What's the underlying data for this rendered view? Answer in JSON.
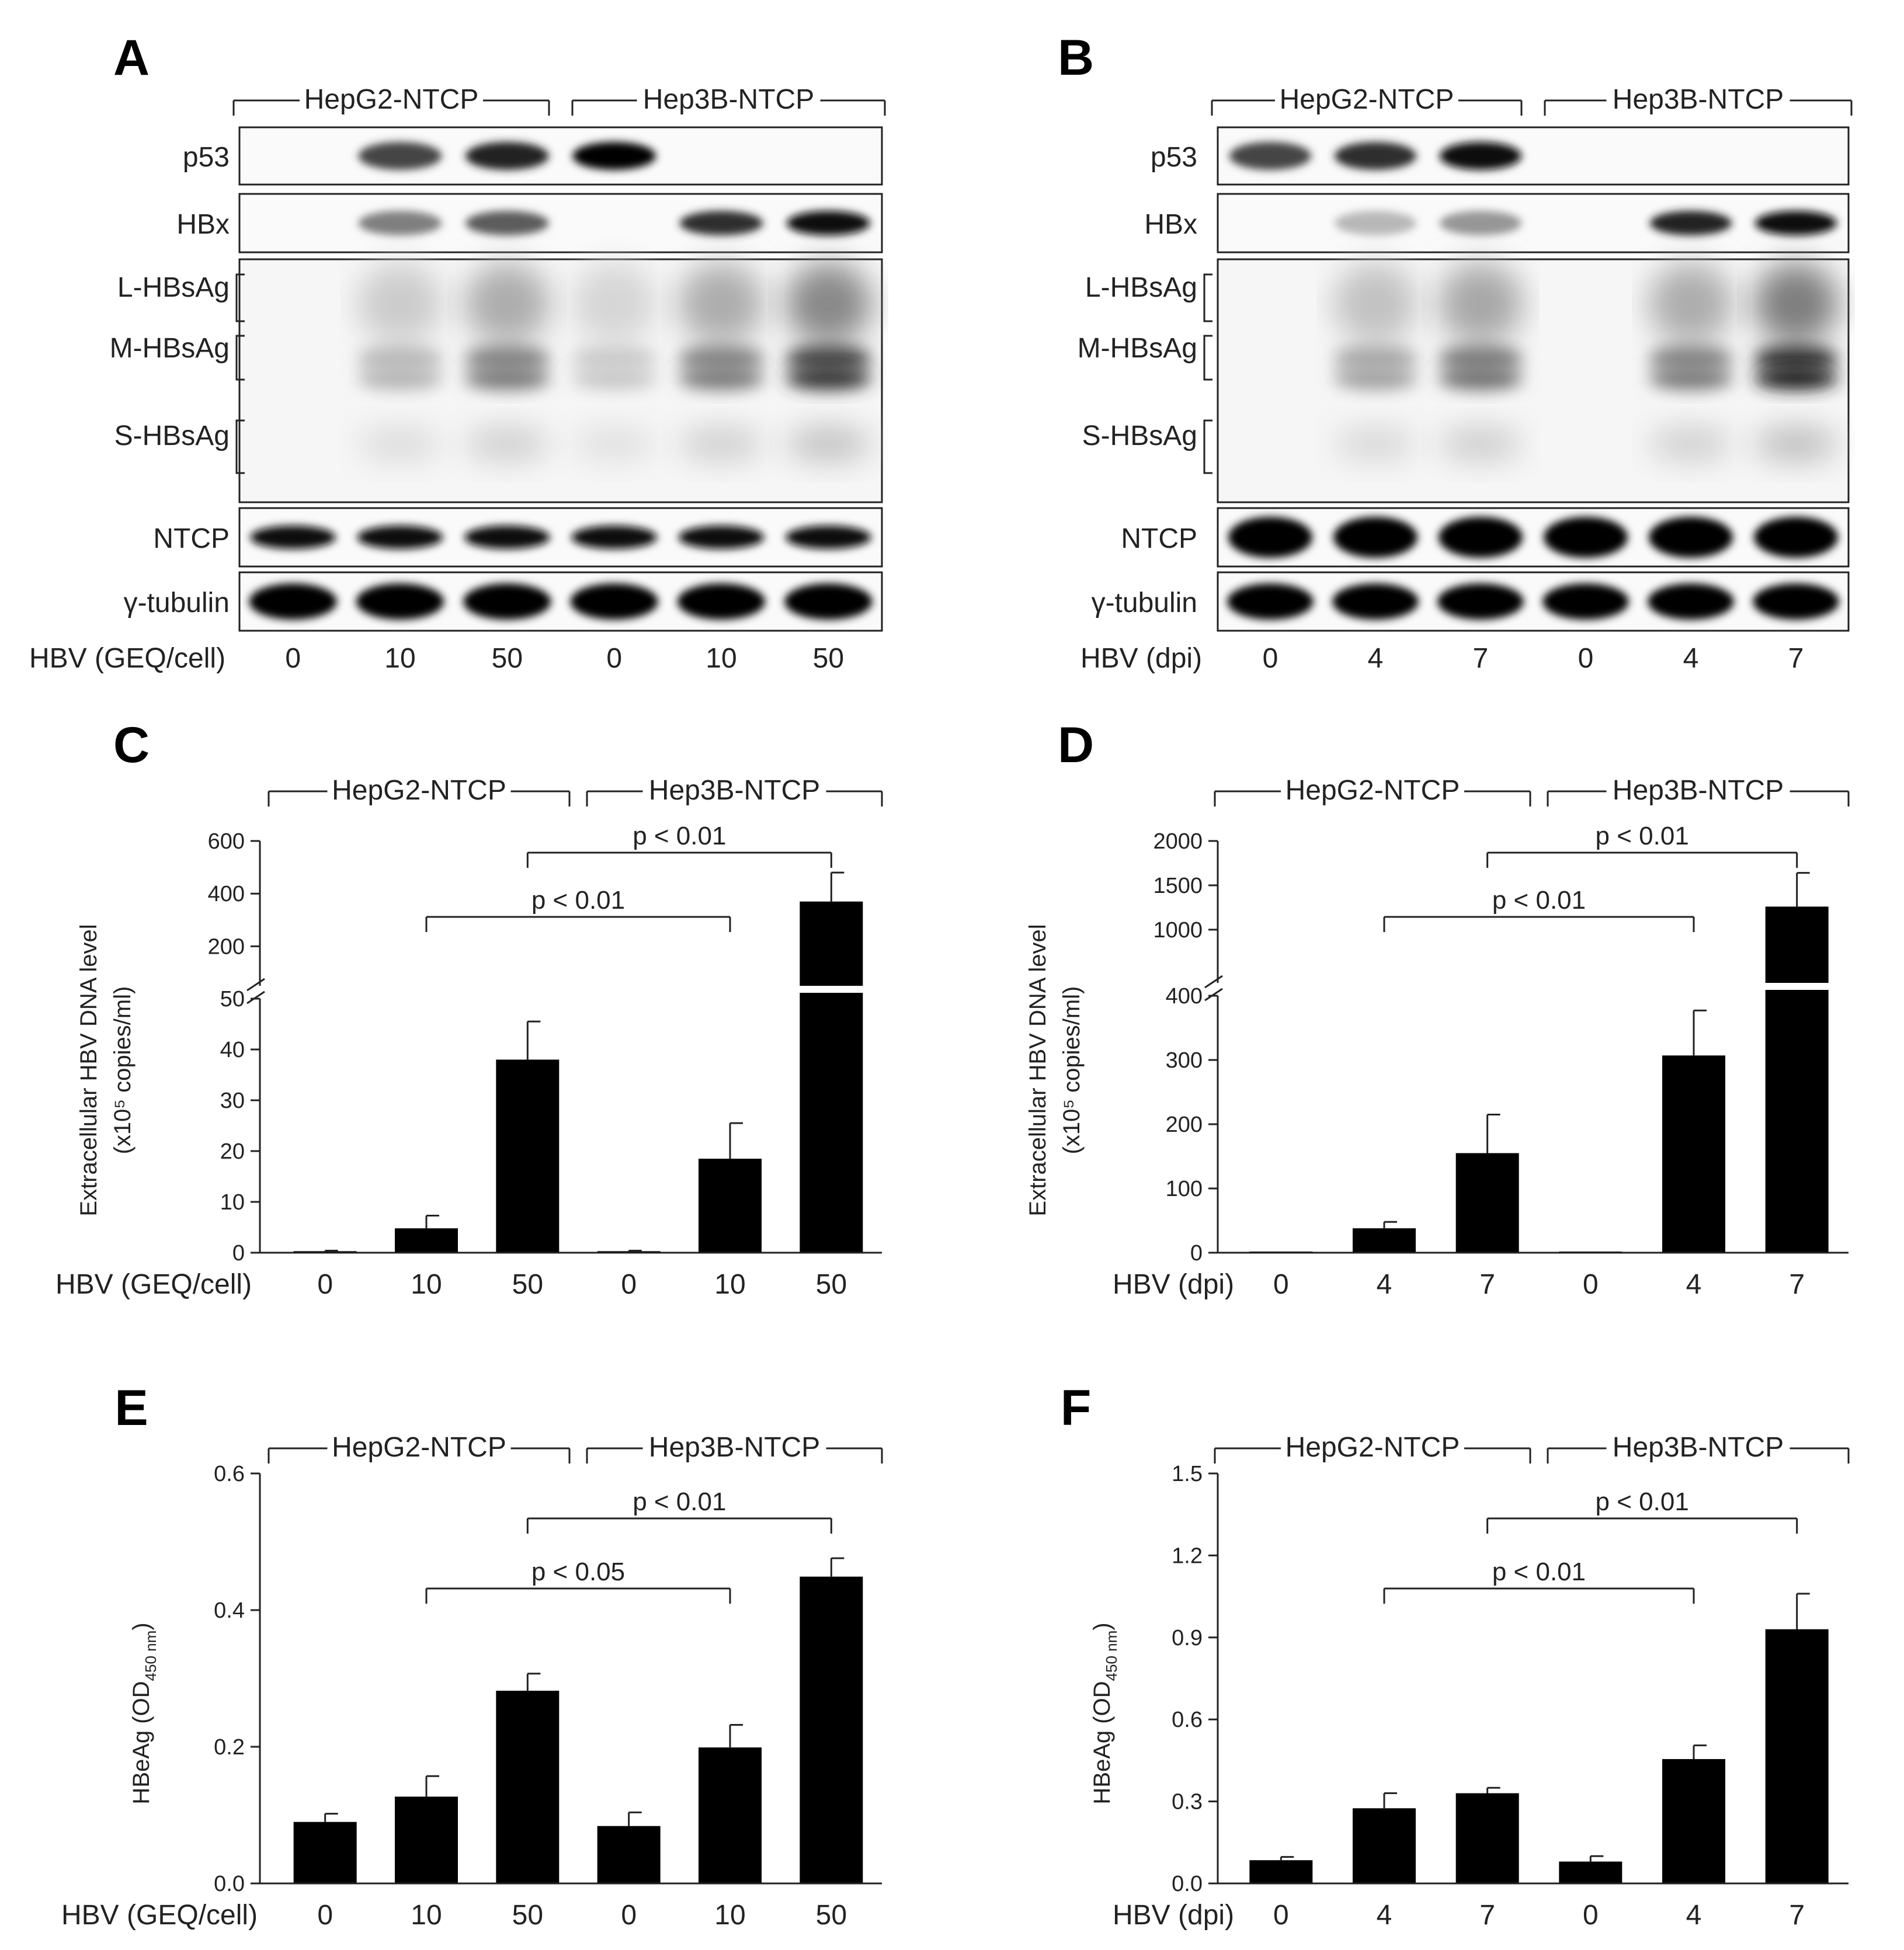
{
  "panel_letters": [
    "A",
    "B",
    "C",
    "D",
    "E",
    "F"
  ],
  "groups": [
    "HepG2-NTCP",
    "Hep3B-NTCP"
  ],
  "blots": [
    {
      "letter": "A",
      "rows": [
        "p53",
        "HBx",
        "L-HBsAg",
        "M-HBsAg",
        "S-HBsAg",
        "NTCP",
        "γ-tubulin"
      ],
      "condition_label": "HBV (GEQ/cell)",
      "lanes": [
        "0",
        "10",
        "50",
        "0",
        "10",
        "50"
      ]
    },
    {
      "letter": "B",
      "rows": [
        "p53",
        "HBx",
        "L-HBsAg",
        "M-HBsAg",
        "S-HBsAg",
        "NTCP",
        "γ-tubulin"
      ],
      "condition_label": "HBV (dpi)",
      "lanes": [
        "0",
        "4",
        "7",
        "0",
        "4",
        "7"
      ]
    }
  ],
  "chart_data": [
    {
      "letter": "C",
      "type": "bar",
      "title": "",
      "xlabel": "HBV (GEQ/cell)",
      "categories": [
        "0",
        "10",
        "50",
        "0",
        "10",
        "50"
      ],
      "values": [
        0.3,
        4.8,
        38,
        0.3,
        18.5,
        370
      ],
      "errors": [
        0.1,
        2.5,
        7.5,
        0.1,
        7,
        110
      ],
      "ylabel_line1": "Extracellular HBV DNA level",
      "ylabel_line2": "(x10⁵ copies/ml)",
      "y_lower_range": [
        0,
        50
      ],
      "y_lower_ticks": [
        "0",
        "10",
        "20",
        "30",
        "40",
        "50"
      ],
      "y_upper_range": [
        0,
        600
      ],
      "y_upper_ticks": [
        "200",
        "400",
        "600"
      ],
      "axis_break": true,
      "comparisons": [
        {
          "from": 1,
          "to": 4,
          "label": "p < 0.01"
        },
        {
          "from": 2,
          "to": 5,
          "label": "p < 0.01"
        }
      ]
    },
    {
      "letter": "D",
      "type": "bar",
      "title": "",
      "xlabel": "HBV (dpi)",
      "categories": [
        "0",
        "4",
        "7",
        "0",
        "4",
        "7"
      ],
      "values": [
        0,
        38,
        155,
        0,
        307,
        1260
      ],
      "errors": [
        0,
        10,
        60,
        0,
        70,
        380
      ],
      "ylabel_line1": "Extracellular HBV DNA level",
      "ylabel_line2": "(x10⁵ copies/ml)",
      "y_lower_range": [
        0,
        400
      ],
      "y_lower_ticks": [
        "0",
        "100",
        "200",
        "300",
        "400"
      ],
      "y_upper_range": [
        500,
        2000
      ],
      "y_upper_ticks": [
        "1000",
        "1500",
        "2000"
      ],
      "axis_break": true,
      "comparisons": [
        {
          "from": 1,
          "to": 4,
          "label": "p < 0.01"
        },
        {
          "from": 2,
          "to": 5,
          "label": "p < 0.01"
        }
      ]
    },
    {
      "letter": "E",
      "type": "bar",
      "title": "",
      "xlabel": "HBV (GEQ/cell)",
      "categories": [
        "0",
        "10",
        "50",
        "0",
        "10",
        "50"
      ],
      "values": [
        0.09,
        0.127,
        0.282,
        0.084,
        0.199,
        0.449
      ],
      "errors": [
        0.012,
        0.03,
        0.025,
        0.02,
        0.033,
        0.027
      ],
      "ylabel_main": "HBeAg (OD",
      "ylabel_sub": "450 nm",
      "ylabel_end": ")",
      "ylim": [
        0,
        0.6
      ],
      "y_ticks": [
        "0.0",
        "0.2",
        "0.4",
        "0.6"
      ],
      "comparisons": [
        {
          "from": 1,
          "to": 4,
          "label": "p < 0.05"
        },
        {
          "from": 2,
          "to": 5,
          "label": "p < 0.01"
        }
      ]
    },
    {
      "letter": "F",
      "type": "bar",
      "title": "",
      "xlabel": "HBV (dpi)",
      "categories": [
        "0",
        "4",
        "7",
        "0",
        "4",
        "7"
      ],
      "values": [
        0.085,
        0.275,
        0.33,
        0.08,
        0.455,
        0.93
      ],
      "errors": [
        0.012,
        0.055,
        0.02,
        0.02,
        0.05,
        0.13
      ],
      "ylabel_main": "HBeAg (OD",
      "ylabel_sub": "450 nm",
      "ylabel_end": ")",
      "ylim": [
        0,
        1.5
      ],
      "y_ticks": [
        "0.0",
        "0.3",
        "0.6",
        "0.9",
        "1.2",
        "1.5"
      ],
      "comparisons": [
        {
          "from": 1,
          "to": 4,
          "label": "p < 0.01"
        },
        {
          "from": 2,
          "to": 5,
          "label": "p < 0.01"
        }
      ]
    }
  ],
  "colors": {
    "bar": "#000000",
    "ink": "#222222"
  }
}
